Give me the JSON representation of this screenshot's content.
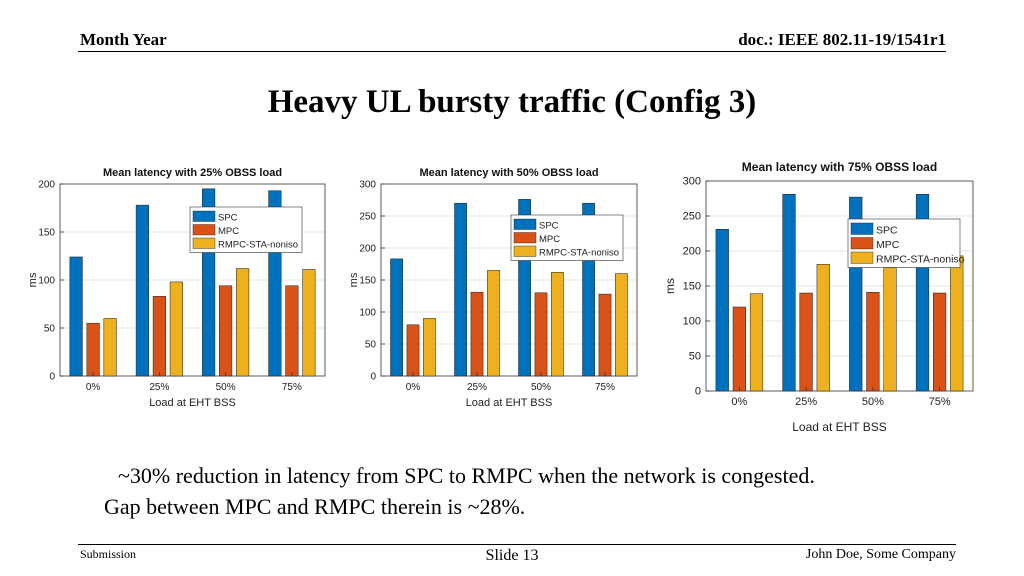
{
  "header": {
    "left": "Month Year",
    "right": "doc.: IEEE 802.11-19/1541r1"
  },
  "title": "Heavy UL bursty traffic (Config 3)",
  "caption": {
    "line1": "~30% reduction in latency from SPC to RMPC when the network is congested.",
    "line2": "Gap between MPC and RMPC therein is ~28%."
  },
  "footer": {
    "left": "Submission",
    "center": "Slide 13",
    "right": "John Doe, Some Company"
  },
  "colors": {
    "spc": "#0072BD",
    "mpc": "#D95319",
    "rmpc": "#EDB120"
  },
  "chart_data": [
    {
      "type": "bar",
      "title": "Mean latency with 25% OBSS load",
      "xlabel": "Load at EHT BSS",
      "ylabel": "ms",
      "categories": [
        "0%",
        "25%",
        "50%",
        "75%"
      ],
      "ylim": [
        0,
        200
      ],
      "yticks": [
        0,
        50,
        100,
        150,
        200
      ],
      "legend_position": "top-right",
      "series": [
        {
          "name": "SPC",
          "values": [
            124,
            178,
            195,
            193
          ]
        },
        {
          "name": "MPC",
          "values": [
            55,
            83,
            94,
            94
          ]
        },
        {
          "name": "RMPC-STA-noniso",
          "values": [
            60,
            98,
            112,
            111
          ]
        }
      ]
    },
    {
      "type": "bar",
      "title": "Mean latency with 50% OBSS load",
      "xlabel": "Load at EHT BSS",
      "ylabel": "ms",
      "categories": [
        "0%",
        "25%",
        "50%",
        "75%"
      ],
      "ylim": [
        0,
        300
      ],
      "yticks": [
        0,
        50,
        100,
        150,
        200,
        250,
        300
      ],
      "legend_position": "top-right",
      "series": [
        {
          "name": "SPC",
          "values": [
            183,
            270,
            276,
            270
          ]
        },
        {
          "name": "MPC",
          "values": [
            80,
            131,
            130,
            128
          ]
        },
        {
          "name": "RMPC-STA-noniso",
          "values": [
            90,
            165,
            162,
            160
          ]
        }
      ]
    },
    {
      "type": "bar",
      "title": "Mean latency with 75% OBSS load",
      "xlabel": "Load at EHT BSS",
      "ylabel": "ms",
      "categories": [
        "0%",
        "25%",
        "50%",
        "75%"
      ],
      "ylim": [
        0,
        300
      ],
      "yticks": [
        0,
        50,
        100,
        150,
        200,
        250,
        300
      ],
      "legend_position": "top-right",
      "series": [
        {
          "name": "SPC",
          "values": [
            231,
            281,
            277,
            281
          ]
        },
        {
          "name": "MPC",
          "values": [
            120,
            140,
            141,
            140
          ]
        },
        {
          "name": "RMPC-STA-noniso",
          "values": [
            139,
            181,
            176,
            193
          ]
        }
      ]
    }
  ]
}
